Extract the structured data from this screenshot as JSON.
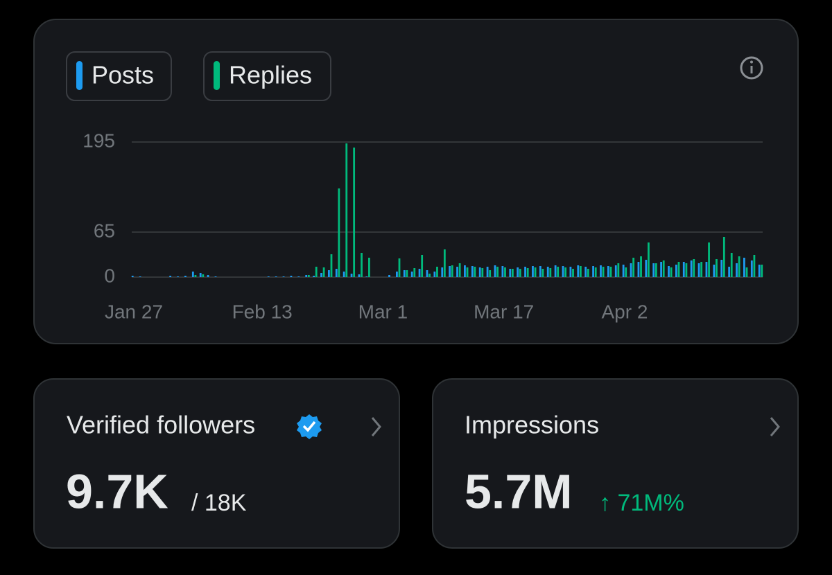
{
  "chart_data": {
    "type": "bar",
    "categories": [
      "Jan 27",
      null,
      null,
      null,
      null,
      null,
      null,
      null,
      null,
      null,
      null,
      null,
      null,
      null,
      null,
      null,
      null,
      "Feb 13",
      null,
      null,
      null,
      null,
      null,
      null,
      null,
      null,
      null,
      null,
      null,
      null,
      null,
      null,
      null,
      "Mar 1",
      null,
      null,
      null,
      null,
      null,
      null,
      null,
      null,
      null,
      null,
      null,
      null,
      null,
      null,
      null,
      "Mar 17",
      null,
      null,
      null,
      null,
      null,
      null,
      null,
      null,
      null,
      null,
      null,
      null,
      null,
      null,
      null,
      "Apr 2",
      null,
      null,
      null,
      null,
      null,
      null,
      null,
      null,
      null,
      null,
      null,
      null,
      null,
      null,
      null,
      null,
      null,
      null
    ],
    "series": [
      {
        "name": "Posts",
        "color": "#1d9bf0",
        "values": [
          2,
          1,
          0,
          0,
          0,
          2,
          1,
          2,
          8,
          6,
          3,
          1,
          0,
          0,
          0,
          0,
          0,
          0,
          1,
          1,
          1,
          2,
          1,
          3,
          2,
          6,
          10,
          12,
          8,
          5,
          4,
          1,
          0,
          0,
          3,
          8,
          10,
          8,
          12,
          10,
          8,
          14,
          16,
          15,
          17,
          16,
          14,
          15,
          17,
          16,
          12,
          14,
          15,
          16,
          16,
          15,
          17,
          16,
          15,
          17,
          15,
          16,
          17,
          16,
          17,
          18,
          20,
          22,
          25,
          20,
          22,
          16,
          18,
          22,
          24,
          20,
          22,
          18,
          25,
          15,
          20,
          28,
          24,
          18
        ]
      },
      {
        "name": "Replies",
        "color": "#00ba7c",
        "values": [
          0,
          0,
          0,
          0,
          0,
          0,
          0,
          0,
          3,
          4,
          0,
          0,
          0,
          0,
          0,
          0,
          0,
          0,
          0,
          0,
          0,
          0,
          0,
          3,
          15,
          14,
          33,
          128,
          193,
          187,
          35,
          28,
          0,
          0,
          0,
          27,
          10,
          13,
          32,
          5,
          15,
          40,
          17,
          20,
          14,
          15,
          13,
          10,
          15,
          14,
          12,
          12,
          13,
          14,
          12,
          13,
          15,
          14,
          12,
          16,
          12,
          14,
          15,
          15,
          20,
          14,
          28,
          30,
          50,
          20,
          24,
          14,
          22,
          20,
          26,
          22,
          50,
          26,
          58,
          35,
          30,
          14,
          32,
          18
        ]
      }
    ],
    "ylim": [
      0,
      195
    ],
    "yticks": [
      0,
      65,
      195
    ],
    "grid": true
  },
  "cards": [
    {
      "title": "Verified followers",
      "value": "9.7K",
      "detail": "/ 18K"
    },
    {
      "title": "Impressions",
      "value": "5.7M",
      "detail": "↑ 71M%"
    }
  ]
}
